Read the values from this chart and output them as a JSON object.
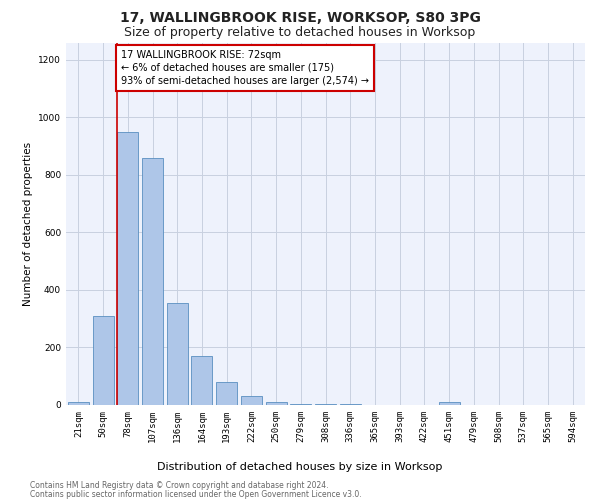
{
  "title1": "17, WALLINGBROOK RISE, WORKSOP, S80 3PG",
  "title2": "Size of property relative to detached houses in Worksop",
  "xlabel": "Distribution of detached houses by size in Worksop",
  "ylabel": "Number of detached properties",
  "bin_labels": [
    "21sqm",
    "50sqm",
    "78sqm",
    "107sqm",
    "136sqm",
    "164sqm",
    "193sqm",
    "222sqm",
    "250sqm",
    "279sqm",
    "308sqm",
    "336sqm",
    "365sqm",
    "393sqm",
    "422sqm",
    "451sqm",
    "479sqm",
    "508sqm",
    "537sqm",
    "565sqm",
    "594sqm"
  ],
  "bar_heights": [
    10,
    310,
    950,
    860,
    355,
    170,
    80,
    30,
    10,
    5,
    2,
    2,
    1,
    0,
    0,
    10,
    0,
    0,
    0,
    0,
    0
  ],
  "bar_color": "#aec6e8",
  "bar_edge_color": "#5a8fc0",
  "annotation_text": "17 WALLINGBROOK RISE: 72sqm\n← 6% of detached houses are smaller (175)\n93% of semi-detached houses are larger (2,574) →",
  "annotation_box_color": "#ffffff",
  "annotation_border_color": "#cc0000",
  "vline_color": "#cc0000",
  "ylim": [
    0,
    1260
  ],
  "yticks": [
    0,
    200,
    400,
    600,
    800,
    1000,
    1200
  ],
  "footer1": "Contains HM Land Registry data © Crown copyright and database right 2024.",
  "footer2": "Contains public sector information licensed under the Open Government Licence v3.0.",
  "background_color": "#eef2fc",
  "grid_color": "#c8d0e0",
  "title1_fontsize": 10,
  "title2_fontsize": 9,
  "ylabel_fontsize": 7.5,
  "xlabel_fontsize": 8,
  "tick_fontsize": 6.5,
  "annotation_fontsize": 7,
  "footer_fontsize": 5.5
}
